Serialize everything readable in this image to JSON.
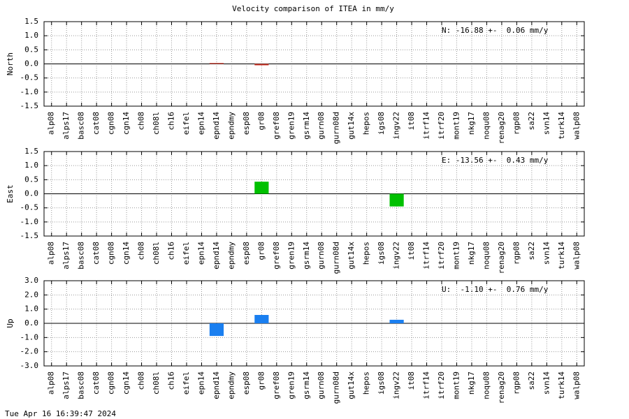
{
  "title": "Velocity comparison of ITEA in mm/y",
  "footer": "Tue Apr 16 16:39:47 2024",
  "chart_data": [
    {
      "type": "bar",
      "ylabel": "North",
      "annotation": "N: -16.88 +-  0.06 mm/y",
      "color": "#d03a2c",
      "categories": [
        "alp08",
        "alps17",
        "basc08",
        "cat08",
        "cgn08",
        "cgn14",
        "ch08",
        "ch08l",
        "ch16",
        "eifel",
        "epn14",
        "epnd14",
        "epndmy",
        "esp08",
        "gr08",
        "gref08",
        "gren19",
        "gsrm14",
        "gurn08",
        "gurn08d",
        "gut14x",
        "hepos",
        "igs08",
        "ingv22",
        "it08",
        "itrf14",
        "itrf20",
        "mont19",
        "nkg17",
        "noqu08",
        "renag20",
        "rgp08",
        "sa22",
        "svn14",
        "turk14",
        "walp08"
      ],
      "values": [
        null,
        null,
        null,
        null,
        null,
        null,
        null,
        null,
        null,
        null,
        null,
        0.03,
        null,
        null,
        -0.05,
        null,
        null,
        null,
        null,
        null,
        null,
        null,
        null,
        null,
        null,
        null,
        null,
        null,
        null,
        null,
        null,
        null,
        null,
        null,
        null,
        null
      ],
      "ylim": [
        -1.5,
        1.5
      ],
      "yticks": [
        {
          "value": -1.5,
          "label": "-1.5"
        },
        {
          "value": -1,
          "label": "-1.0"
        },
        -0.5,
        {
          "value": 0,
          "label": "0.0"
        },
        0.5,
        {
          "value": 1,
          "label": "1.0"
        },
        1.5
      ],
      "grid": true
    },
    {
      "type": "bar",
      "ylabel": "East",
      "annotation": "E: -13.56 +-  0.43 mm/y",
      "color": "#00c000",
      "categories": [
        "alp08",
        "alps17",
        "basc08",
        "cat08",
        "cgn08",
        "cgn14",
        "ch08",
        "ch08l",
        "ch16",
        "eifel",
        "epn14",
        "epnd14",
        "epndmy",
        "esp08",
        "gr08",
        "gref08",
        "gren19",
        "gsrm14",
        "gurn08",
        "gurn08d",
        "gut14x",
        "hepos",
        "igs08",
        "ingv22",
        "it08",
        "itrf14",
        "itrf20",
        "mont19",
        "nkg17",
        "noqu08",
        "renag20",
        "rgp08",
        "sa22",
        "svn14",
        "turk14",
        "walp08"
      ],
      "values": [
        null,
        null,
        null,
        null,
        null,
        null,
        null,
        null,
        null,
        null,
        null,
        null,
        null,
        null,
        0.43,
        null,
        null,
        null,
        null,
        null,
        null,
        null,
        null,
        -0.45,
        null,
        null,
        null,
        null,
        null,
        null,
        null,
        null,
        null,
        null,
        null,
        null
      ],
      "ylim": [
        -1.5,
        1.5
      ],
      "yticks": [
        {
          "value": -1.5,
          "label": "-1.5"
        },
        {
          "value": -1,
          "label": "-1.0"
        },
        -0.5,
        {
          "value": 0,
          "label": "0.0"
        },
        0.5,
        {
          "value": 1,
          "label": "1.0"
        },
        1.5
      ],
      "grid": true
    },
    {
      "type": "bar",
      "ylabel": "Up",
      "annotation": "U:  -1.10 +-  0.76 mm/y",
      "color": "#1a7ff0",
      "categories": [
        "alp08",
        "alps17",
        "basc08",
        "cat08",
        "cgn08",
        "cgn14",
        "ch08",
        "ch08l",
        "ch16",
        "eifel",
        "epn14",
        "epnd14",
        "epndmy",
        "esp08",
        "gr08",
        "gref08",
        "gren19",
        "gsrm14",
        "gurn08",
        "gurn08d",
        "gut14x",
        "hepos",
        "igs08",
        "ingv22",
        "it08",
        "itrf14",
        "itrf20",
        "mont19",
        "nkg17",
        "noqu08",
        "renag20",
        "rgp08",
        "sa22",
        "svn14",
        "turk14",
        "walp08"
      ],
      "values": [
        null,
        null,
        null,
        null,
        null,
        null,
        null,
        null,
        null,
        null,
        null,
        -0.89,
        null,
        null,
        0.59,
        null,
        null,
        null,
        null,
        null,
        null,
        null,
        null,
        0.25,
        null,
        null,
        null,
        null,
        null,
        null,
        null,
        null,
        null,
        null,
        null,
        null
      ],
      "ylim": [
        -3,
        3
      ],
      "yticks": [
        {
          "value": -3,
          "label": "-3.0"
        },
        {
          "value": -2,
          "label": "-2.0"
        },
        {
          "value": -1,
          "label": "-1.0"
        },
        {
          "value": 0,
          "label": "0.0"
        },
        {
          "value": 1,
          "label": "1.0"
        },
        {
          "value": 2,
          "label": "2.0"
        },
        {
          "value": 3,
          "label": "3.0"
        }
      ],
      "grid": true
    }
  ]
}
